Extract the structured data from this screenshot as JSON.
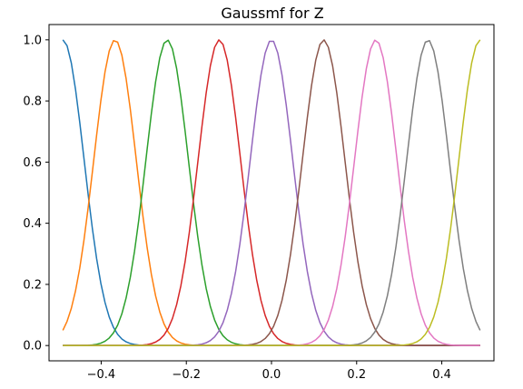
{
  "chart_data": {
    "type": "line",
    "title": "Gaussmf for Z",
    "xlabel": "",
    "ylabel": "",
    "xlim": [
      -0.5225,
      0.5225
    ],
    "ylim": [
      -0.05,
      1.05
    ],
    "x_ticks": [
      -0.4,
      -0.2,
      0.0,
      0.2,
      0.4
    ],
    "x_tick_labels": [
      "−0.4",
      "−0.2",
      "0.0",
      "0.2",
      "0.4"
    ],
    "y_ticks": [
      0.0,
      0.2,
      0.4,
      0.6,
      0.8,
      1.0
    ],
    "y_tick_labels": [
      "0.0",
      "0.2",
      "0.4",
      "0.6",
      "0.8",
      "1.0"
    ],
    "x_range": [
      -0.49,
      0.49
    ],
    "sigma": 0.05,
    "grid": false,
    "series": [
      {
        "mean": -0.49,
        "color": "#1f77b4"
      },
      {
        "mean": -0.3675,
        "color": "#ff7f0e"
      },
      {
        "mean": -0.245,
        "color": "#2ca02c"
      },
      {
        "mean": -0.1225,
        "color": "#d62728"
      },
      {
        "mean": 0.0,
        "color": "#9467bd"
      },
      {
        "mean": 0.1225,
        "color": "#8c564b"
      },
      {
        "mean": 0.245,
        "color": "#e377c2"
      },
      {
        "mean": 0.3675,
        "color": "#7f7f7f"
      },
      {
        "mean": 0.49,
        "color": "#bcbd22"
      }
    ]
  }
}
